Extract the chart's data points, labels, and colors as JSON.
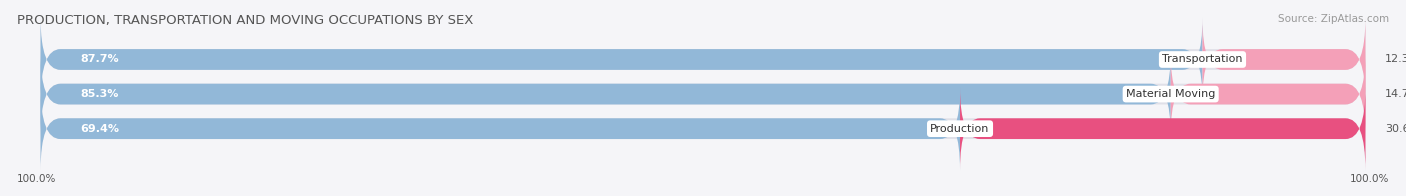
{
  "title": "PRODUCTION, TRANSPORTATION AND MOVING OCCUPATIONS BY SEX",
  "source": "Source: ZipAtlas.com",
  "categories": [
    "Transportation",
    "Material Moving",
    "Production"
  ],
  "male_values": [
    87.7,
    85.3,
    69.4
  ],
  "female_values": [
    12.3,
    14.7,
    30.6
  ],
  "male_color": "#92b8d8",
  "female_color_light": "#f4a0b8",
  "female_color_dark": "#e85080",
  "bar_bg_color": "#e0e0e8",
  "title_color": "#555555",
  "source_color": "#999999",
  "label_color_white": "#ffffff",
  "label_color_dark": "#555555",
  "background_color": "#f5f5f8",
  "title_fontsize": 9.5,
  "source_fontsize": 7.5,
  "bar_label_fontsize": 8.0,
  "cat_label_fontsize": 8.0,
  "pct_label_fontsize": 8.0,
  "axis_label_fontsize": 7.5,
  "legend_fontsize": 8.0
}
